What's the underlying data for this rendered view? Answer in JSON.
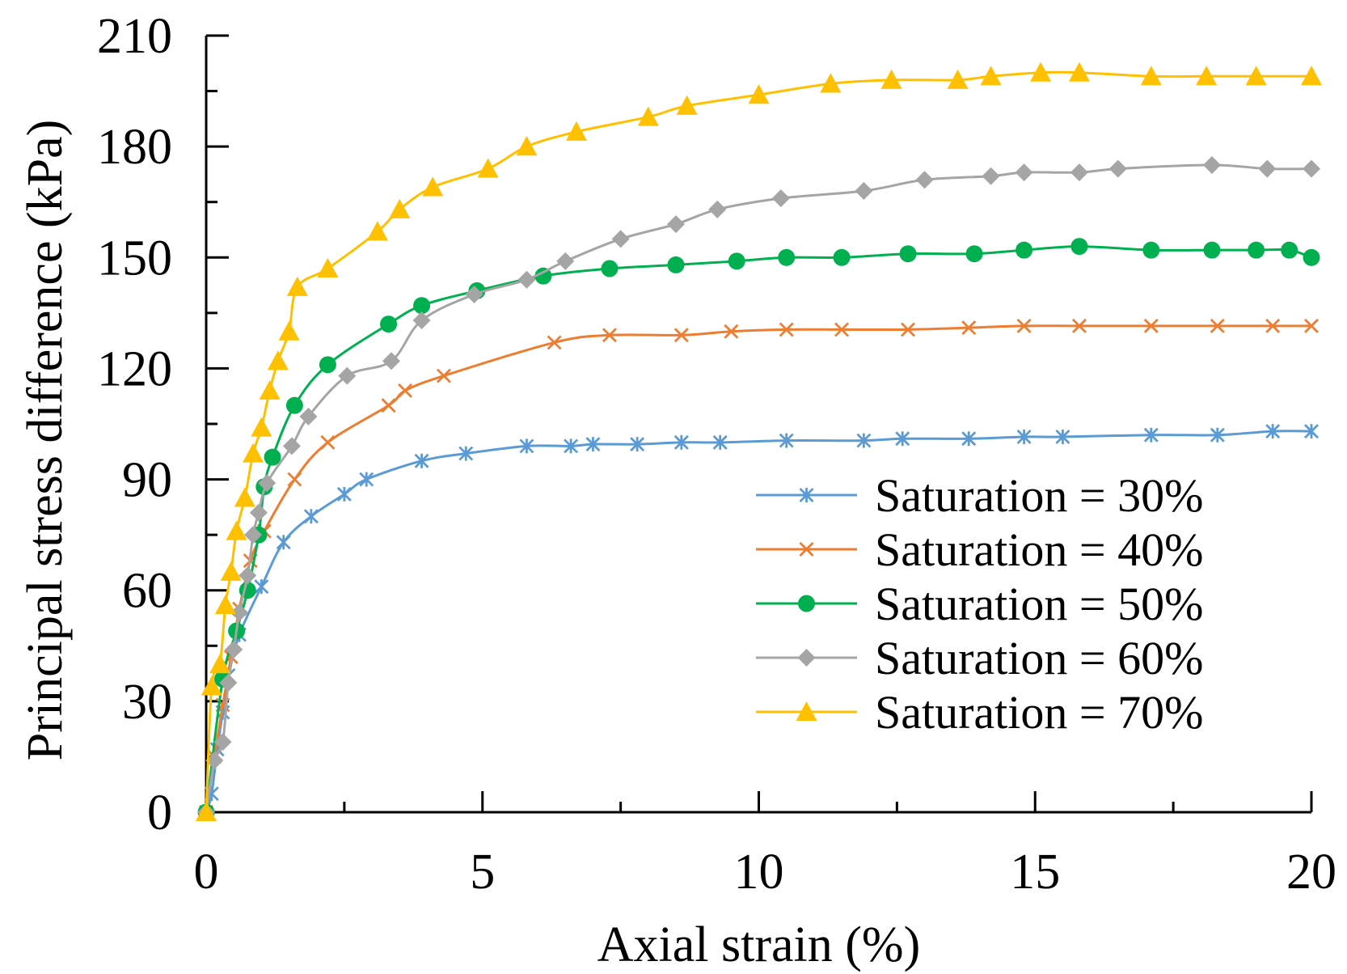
{
  "chart_data": {
    "type": "line",
    "title": "",
    "xlabel": "Axial strain (%)",
    "ylabel": "Principal stress difference (kPa)",
    "xlim": [
      0,
      20
    ],
    "ylim": [
      0,
      210
    ],
    "x_ticks": [
      0,
      5,
      10,
      15,
      20
    ],
    "y_ticks": [
      0,
      30,
      60,
      90,
      120,
      150,
      180,
      210
    ],
    "x_tick_labels": [
      "0",
      "5",
      "10",
      "15",
      "20"
    ],
    "y_tick_labels": [
      "0",
      "30",
      "60",
      "90",
      "120",
      "150",
      "180",
      "210"
    ],
    "grid": false,
    "legend_position": "right-middle",
    "series": [
      {
        "name": "Saturation = 30%",
        "color": "#5b9bd5",
        "marker": "asterisk",
        "x": [
          0,
          0.1,
          0.2,
          0.3,
          0.4,
          0.6,
          1.0,
          1.4,
          1.9,
          2.5,
          2.9,
          3.9,
          4.7,
          5.8,
          6.6,
          7.0,
          7.8,
          8.6,
          9.3,
          10.5,
          11.9,
          12.6,
          13.8,
          14.8,
          15.5,
          17.1,
          18.3,
          19.3,
          20.0
        ],
        "y": [
          0,
          5,
          17,
          27,
          37,
          48,
          61,
          73,
          80,
          86,
          90,
          95,
          97,
          99,
          99,
          99.5,
          99.5,
          100,
          100,
          100.5,
          100.5,
          101,
          101,
          101.5,
          101.5,
          102,
          102,
          103,
          103
        ]
      },
      {
        "name": "Saturation = 40%",
        "color": "#ed7d31",
        "marker": "x",
        "x": [
          0,
          0.15,
          0.3,
          0.45,
          0.6,
          0.8,
          1.05,
          1.6,
          2.2,
          3.3,
          3.6,
          4.3,
          6.3,
          7.3,
          8.6,
          9.5,
          10.5,
          11.5,
          12.7,
          13.8,
          14.8,
          15.8,
          17.1,
          18.3,
          19.3,
          20.0
        ],
        "y": [
          0,
          15,
          29,
          42,
          55,
          68,
          76,
          90,
          100,
          110,
          114,
          118,
          127,
          129,
          129,
          130,
          130.5,
          130.5,
          130.5,
          131,
          131.5,
          131.5,
          131.5,
          131.5,
          131.5,
          131.5
        ],
        "label_pos": 0
      },
      {
        "name": "Saturation = 50%",
        "color": "#00b050",
        "marker": "circle",
        "x": [
          0,
          0.3,
          0.55,
          0.75,
          0.95,
          1.05,
          1.2,
          1.6,
          2.2,
          3.3,
          3.9,
          4.9,
          6.1,
          7.3,
          8.5,
          9.6,
          10.5,
          11.5,
          12.7,
          13.9,
          14.8,
          15.8,
          17.1,
          18.2,
          19.0,
          19.6,
          20.0
        ],
        "y": [
          0,
          36,
          49,
          60,
          75,
          88,
          96,
          110,
          121,
          132,
          137,
          141,
          145,
          147,
          148,
          149,
          150,
          150,
          151,
          151,
          152,
          153,
          152,
          152,
          152,
          152,
          150
        ]
      },
      {
        "name": "Saturation = 60%",
        "color": "#a5a5a5",
        "marker": "diamond",
        "x": [
          0,
          0.15,
          0.3,
          0.4,
          0.5,
          0.6,
          0.75,
          0.85,
          0.95,
          1.1,
          1.55,
          1.85,
          2.55,
          3.35,
          3.9,
          4.85,
          5.8,
          6.5,
          7.5,
          8.5,
          9.25,
          10.4,
          11.9,
          13.0,
          14.2,
          14.8,
          15.8,
          16.5,
          18.2,
          19.2,
          20.0
        ],
        "y": [
          0,
          14,
          19,
          35,
          44,
          54,
          64,
          75,
          81,
          89,
          99,
          107,
          118,
          122,
          133,
          140,
          144,
          149,
          155,
          159,
          163,
          166,
          168,
          171,
          172,
          173,
          173,
          174,
          175,
          174,
          174
        ],
        "label_pos": 0
      },
      {
        "name": "Saturation = 70%",
        "color": "#ffc000",
        "marker": "triangle",
        "x": [
          0,
          0.1,
          0.25,
          0.35,
          0.45,
          0.55,
          0.7,
          0.85,
          1.0,
          1.15,
          1.3,
          1.5,
          1.65,
          2.2,
          3.1,
          3.5,
          4.1,
          5.1,
          5.8,
          6.7,
          8.0,
          8.7,
          10.0,
          11.3,
          12.4,
          13.6,
          14.2,
          15.1,
          15.8,
          17.1,
          18.1,
          19.0,
          20.0
        ],
        "y": [
          0,
          34,
          40,
          56,
          65,
          76,
          85,
          97,
          104,
          114,
          122,
          130,
          142,
          147,
          157,
          163,
          169,
          174,
          180,
          184,
          188,
          191,
          194,
          197,
          198,
          198,
          199,
          200,
          200,
          199,
          199,
          199,
          199
        ]
      }
    ]
  }
}
